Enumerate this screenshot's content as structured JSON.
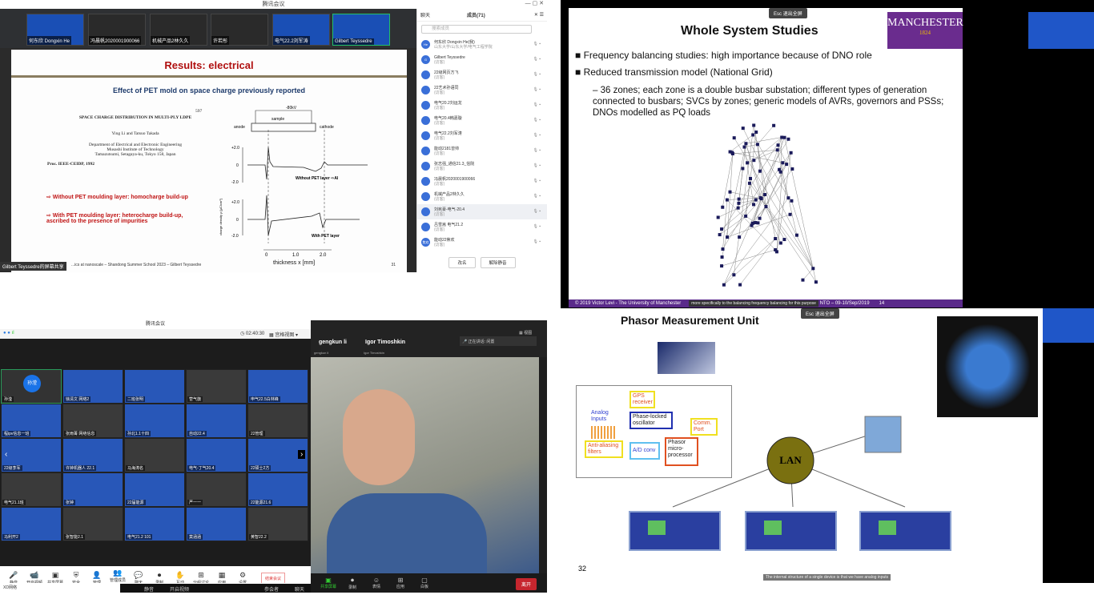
{
  "q1": {
    "window_title": "腾讯会议",
    "thumbs": [
      "何东欣 Dongxin He",
      "冯晨帆2020001900066",
      "机械产品2林久久",
      "许若彤",
      "电气22.2刘军涛",
      "Gilbert Teyssedre"
    ],
    "slide": {
      "title": "Results: electrical",
      "subtitle": "Effect of PET mold on space charge previously reported",
      "paper_title": "SPACE CHARGE DISTRIBUTION IN MULTI-PLY LDPE",
      "page_ref": "597",
      "authors": "Ying Li and Tatsuo Takada",
      "affil1": "Department of Electrical and Electronic Engineering",
      "affil2": "Musashi Institute of Technology",
      "affil3": "Tamazutsumi, Setagaya-ku, Tokyo 158, Japan",
      "proc": "Proc. IEEE-CEIDP, 1992",
      "bullet1": "⇨ Without PET moulding layer: homocharge build-up",
      "bullet2": "⇨ With PET moulding layer: heterocharge build-up, ascribed to the presence of impurities",
      "fig_anode": "anode",
      "fig_cathode": "cathode",
      "fig_sample": "sample",
      "fig_voltage": "-80kV",
      "fig_ylabel": "charge density ρ [μC/cm³]",
      "fig_label1": "Without PET layer ⇨Al",
      "fig_label2": "With PET layer",
      "fig_yticks": [
        "+2.0",
        "0",
        "-2.0"
      ],
      "fig_xticks": [
        "0",
        "1.0",
        "2.0"
      ],
      "fig_xlabel": "thickness x [mm]",
      "footer": "...ics at nanoscale – Shandong Summer School 2023 – Gilbert Teyssedre",
      "page": "31"
    },
    "sharer": "Gilbert Teyssedre的屏幕共享",
    "panel": {
      "tab_chat": "聊天",
      "tab_members": "成员(71)",
      "search_placeholder": "搜索成员",
      "members": [
        {
          "name": "何东欣 Dongxin He(我)",
          "role": "山东大学/山东大学/电气工程学院",
          "avatar": "He"
        },
        {
          "name": "Gilbert Teyssedre",
          "role": "(访客)",
          "avatar": "G"
        },
        {
          "name": "22级网页方飞",
          "role": "(访客)",
          "avatar": ""
        },
        {
          "name": "22艺术孙语同",
          "role": "(访客)",
          "avatar": ""
        },
        {
          "name": "电气20.2刘运龙",
          "role": "(访客)",
          "avatar": ""
        },
        {
          "name": "电气20.4韩嘉璇",
          "role": "(访客)",
          "avatar": ""
        },
        {
          "name": "电气22.2刘军涛",
          "role": "(访客)",
          "avatar": ""
        },
        {
          "name": "能动2181曾帅",
          "role": "(访客)",
          "avatar": ""
        },
        {
          "name": "张志强_通信21.3_信院",
          "role": "(访客)",
          "avatar": ""
        },
        {
          "name": "冯晨帆2020001900066",
          "role": "(访客)",
          "avatar": ""
        },
        {
          "name": "机械产品2林久久",
          "role": "(访客)",
          "avatar": ""
        },
        {
          "name": "刘宪豪-电气-20.4",
          "role": "(访客)",
          "avatar": ""
        },
        {
          "name": "吕雪嵩 电气21.2",
          "role": "(访客)",
          "avatar": ""
        },
        {
          "name": "能动22焦欢",
          "role": "(访客)",
          "avatar": "焦欢"
        }
      ],
      "btn_rename": "改名",
      "btn_unmute": "解除静音"
    }
  },
  "q2": {
    "slide_title": "Whole System Studies",
    "logo": "MANCHESTER",
    "logo_year": "1824",
    "logo_under": "The University of Manchester",
    "bullets": [
      "Frequency balancing studies: high importance because of DNO role",
      "Reduced transmission model (National Grid)"
    ],
    "sub_bullet": "36 zones; each zone is a double busbar substation; different types of generation connected to busbars; SVCs by zones; generic models of AVRs, governors and PSSs; DNOs modelled as PQ loads",
    "footer": "© 2019 Victor Levi - The University of Manchester",
    "footer_right": "NTO – 09-10/Sep/2019",
    "page": "14",
    "caption": "more specifically to the balancing frequency balancing for this purpose",
    "esc_label": "Esc",
    "exit_full": "退出全屏"
  },
  "q3": {
    "window_title": "腾讯会议",
    "timer": "02:40:30",
    "view": "宫格视图",
    "tiles": [
      "孙滢",
      "徐清文 网络2",
      "二班张明",
      "菅气旗",
      "申气22.5白林峰",
      "程ipv信息一班",
      "张雨菁 网络信息",
      "孙北1.1十四",
      "自动22.4",
      "22管理",
      "22级李军",
      "许钟机器人 22.1",
      "马海涛名",
      "电气-丁气20.4",
      "22硕士2方",
      "电气21.1班",
      "张钟",
      "22届能源",
      "严一一",
      "22能源21.6",
      "马利开2",
      "张智能2.1",
      "电气21.2 101",
      "莫涵涵",
      "黄智22.2"
    ],
    "self_avatar": "孙滢",
    "toolbar": [
      "静音",
      "开启视频",
      "共享屏幕",
      "安全",
      "管理",
      "管理成员(71)",
      "聊天",
      "录制",
      "互动",
      "分组讨论",
      "应用",
      "设置"
    ],
    "leave": "结束会议",
    "status_left": "XD网络",
    "zoom": {
      "name1": "gengkun li",
      "name2": "Igor Timoshkin",
      "sub1": "gengkun li",
      "sub2": "Igor Timoshkin",
      "speaking": "正在讲话: 闲置",
      "view": "视图",
      "toolbar": [
        "共享屏幕",
        "录制",
        "表情",
        "应用",
        "白板"
      ],
      "extra": [
        "静音",
        "开启视频",
        "参会者",
        "聊天"
      ],
      "leave": "离开"
    }
  },
  "q4": {
    "slide_title": "Phasor Measurement Unit",
    "blocks": {
      "gps": "GPS receiver",
      "analog": "Analog Inputs",
      "pll": "Phase-locked oscillator",
      "comm": "Comm. Port",
      "aaf": "Anti-aliasing filters",
      "adc": "A/D conv",
      "proc": "Phasor micro-processor"
    },
    "lan": "LAN",
    "page": "32",
    "caption": "The internal structure of a single device is that we have analog inputs",
    "esc_label": "Esc",
    "exit_full": "退出全屏"
  }
}
